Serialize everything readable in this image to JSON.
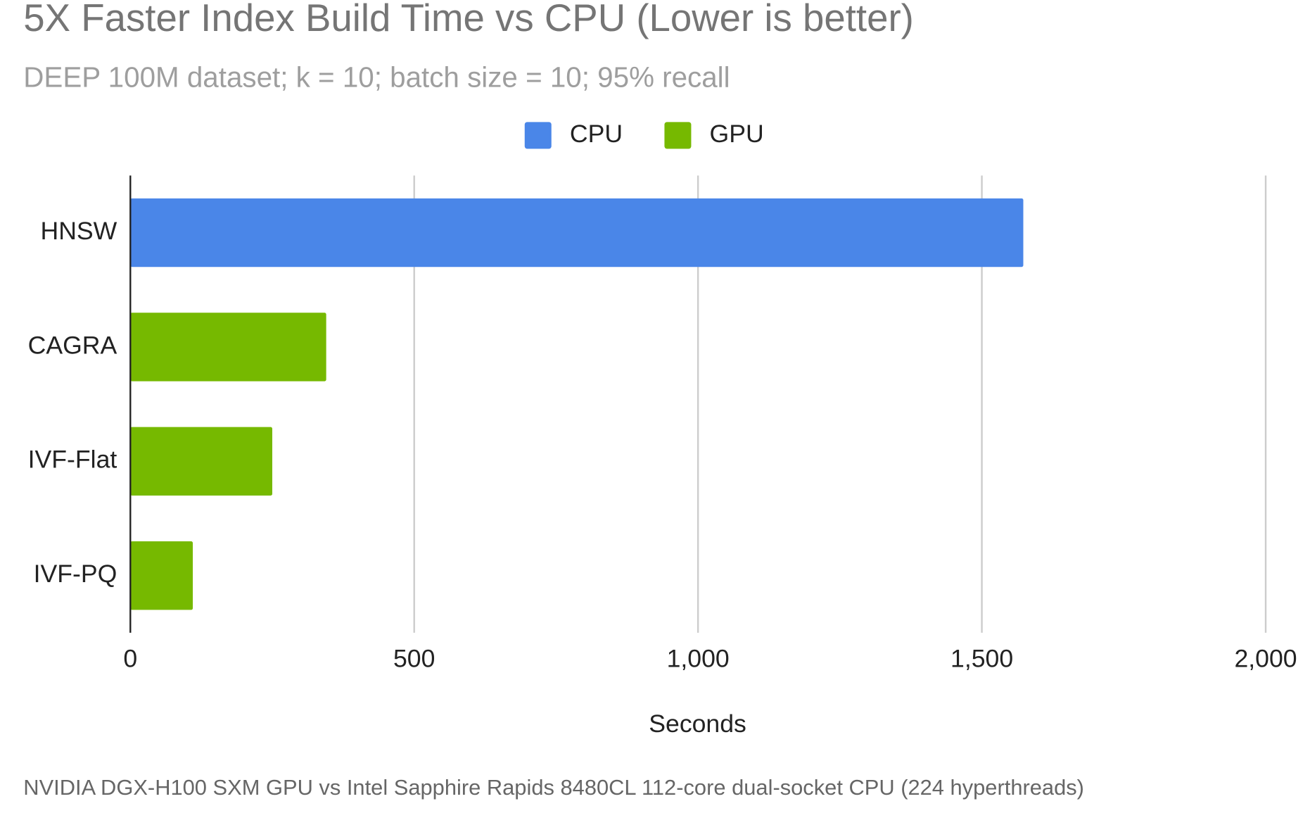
{
  "chart_data": {
    "type": "bar",
    "orientation": "horizontal",
    "title": "5X Faster Index Build Time vs CPU (Lower is better)",
    "subtitle": "DEEP 100M dataset; k = 10; batch size = 10; 95% recall",
    "categories": [
      "HNSW",
      "CAGRA",
      "IVF-Flat",
      "IVF-PQ"
    ],
    "series": [
      {
        "name": "CPU",
        "color": "#4a86e8",
        "values": [
          1573,
          null,
          null,
          null
        ]
      },
      {
        "name": "GPU",
        "color": "#76b900",
        "values": [
          null,
          345,
          250,
          110
        ]
      }
    ],
    "xlim": [
      0,
      2000
    ],
    "xticks": [
      0,
      500,
      {
        "value": 1000,
        "label": "1,000"
      },
      {
        "value": 1500,
        "label": "1,500"
      },
      {
        "value": 2000,
        "label": "2,000"
      }
    ],
    "x_label": "Seconds",
    "grid": true,
    "legend": "top",
    "footnote": "NVIDIA DGX-H100 SXM GPU vs Intel Sapphire Rapids 8480CL 112-core dual-socket CPU (224 hyperthreads)"
  }
}
